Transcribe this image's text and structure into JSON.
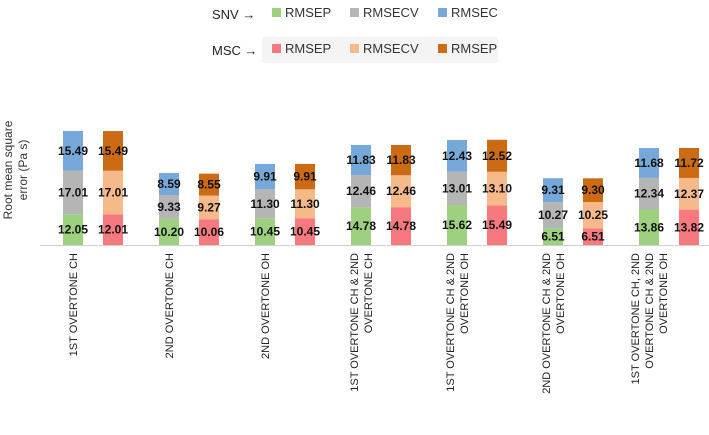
{
  "chart_data": {
    "type": "bar",
    "stacked": true,
    "ylabel": "Root mean square error (Pa s)",
    "categories": [
      "1ST OVERTONE CH",
      "2ND OVERTONE CH",
      "2ND OVERTONE OH",
      "1ST OVERTONE CH & 2ND OVERTONE CH",
      "1ST OVERTONE CH & 2ND OVERTONE OH",
      "2ND OVERTONE CH & 2ND OVERTONE OH",
      "1ST OVERTONE CH, 2ND OVERTONE CH & 2ND OVERTONE OH"
    ],
    "groups": [
      {
        "name": "SNV",
        "series": [
          {
            "name": "RMSEP",
            "color": "#9DD17F",
            "values": [
              12.05,
              10.2,
              10.45,
              14.78,
              15.62,
              6.51,
              13.86
            ]
          },
          {
            "name": "RMSECV",
            "color": "#B5B5B5",
            "values": [
              17.01,
              9.33,
              11.3,
              12.46,
              13.01,
              10.27,
              12.34
            ]
          },
          {
            "name": "RMSEC",
            "color": "#76A9DA",
            "values": [
              15.49,
              8.59,
              9.91,
              11.83,
              12.43,
              9.31,
              11.68
            ]
          }
        ]
      },
      {
        "name": "MSC",
        "series": [
          {
            "name": "RMSEP",
            "color": "#F7797F",
            "values": [
              12.01,
              10.06,
              10.45,
              14.78,
              15.49,
              6.51,
              13.82
            ]
          },
          {
            "name": "RMSECV",
            "color": "#F5B98A",
            "values": [
              17.01,
              9.27,
              11.3,
              12.46,
              13.1,
              10.25,
              12.37
            ]
          },
          {
            "name": "RMSEP",
            "color": "#CD6A14",
            "values": [
              15.49,
              8.55,
              9.91,
              11.83,
              12.52,
              9.3,
              11.72
            ]
          }
        ]
      }
    ],
    "grid": false,
    "legend": "top"
  }
}
